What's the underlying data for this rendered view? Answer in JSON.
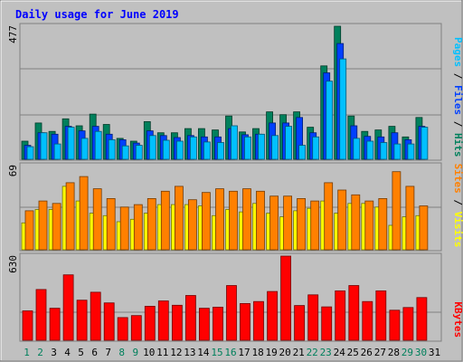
{
  "chart_data": [
    {
      "type": "bar",
      "title": "Daily usage for June 2019",
      "categories": [
        "1",
        "2",
        "3",
        "4",
        "5",
        "6",
        "7",
        "8",
        "9",
        "10",
        "11",
        "12",
        "13",
        "14",
        "15",
        "16",
        "17",
        "18",
        "19",
        "20",
        "21",
        "22",
        "23",
        "24",
        "25",
        "26",
        "27",
        "28",
        "29",
        "30",
        "31"
      ],
      "weekend_days": [
        1,
        2,
        8,
        9,
        15,
        16,
        22,
        23,
        29,
        30
      ],
      "ylim": [
        0,
        477
      ],
      "ytick_label": "477",
      "legend": [
        {
          "label": "Pages",
          "color": "#00c0ff"
        },
        {
          "label": "Files",
          "color": "#0040ff"
        },
        {
          "label": "Hits",
          "color": "#00805c"
        }
      ],
      "series": [
        {
          "name": "Hits",
          "color": "#00805c",
          "values": [
            65,
            130,
            100,
            145,
            120,
            162,
            125,
            75,
            65,
            135,
            95,
            95,
            110,
            110,
            105,
            155,
            98,
            110,
            170,
            160,
            170,
            115,
            335,
            477,
            155,
            100,
            105,
            118,
            80,
            150,
            0
          ]
        },
        {
          "name": "Files",
          "color": "#0040ff",
          "values": [
            50,
            95,
            90,
            118,
            102,
            118,
            90,
            70,
            58,
            102,
            85,
            78,
            85,
            80,
            80,
            110,
            88,
            90,
            130,
            130,
            150,
            95,
            310,
            415,
            120,
            82,
            80,
            95,
            70,
            118,
            0
          ]
        },
        {
          "name": "Pages",
          "color": "#00c0ff",
          "values": [
            45,
            95,
            55,
            115,
            75,
            100,
            70,
            48,
            50,
            85,
            68,
            65,
            80,
            62,
            60,
            120,
            80,
            90,
            85,
            118,
            50,
            80,
            280,
            360,
            75,
            65,
            60,
            55,
            55,
            115,
            0
          ]
        }
      ]
    },
    {
      "type": "bar",
      "categories": [
        "1",
        "2",
        "3",
        "4",
        "5",
        "6",
        "7",
        "8",
        "9",
        "10",
        "11",
        "12",
        "13",
        "14",
        "15",
        "16",
        "17",
        "18",
        "19",
        "20",
        "21",
        "22",
        "23",
        "24",
        "25",
        "26",
        "27",
        "28",
        "29",
        "30",
        "31"
      ],
      "ylim": [
        0,
        69
      ],
      "ytick_label": "69",
      "legend": [
        {
          "label": "Sites",
          "color": "#ff8000"
        },
        {
          "label": "Visits",
          "color": "#ffff00"
        }
      ],
      "series": [
        {
          "name": "Visits",
          "color": "#ffff00",
          "values": [
            22,
            33,
            33,
            52,
            40,
            30,
            28,
            23,
            25,
            30,
            37,
            37,
            37,
            36,
            28,
            33,
            31,
            38,
            30,
            27,
            32,
            34,
            40,
            30,
            38,
            38,
            35,
            20,
            27,
            28,
            0
          ]
        },
        {
          "name": "Sites",
          "color": "#ff8000",
          "values": [
            32,
            40,
            38,
            55,
            60,
            50,
            42,
            35,
            37,
            42,
            48,
            52,
            41,
            47,
            50,
            48,
            50,
            48,
            44,
            44,
            42,
            40,
            55,
            49,
            45,
            40,
            42,
            64,
            52,
            36,
            0
          ]
        }
      ]
    },
    {
      "type": "bar",
      "categories": [
        "1",
        "2",
        "3",
        "4",
        "5",
        "6",
        "7",
        "8",
        "9",
        "10",
        "11",
        "12",
        "13",
        "14",
        "15",
        "16",
        "17",
        "18",
        "19",
        "20",
        "21",
        "22",
        "23",
        "24",
        "25",
        "26",
        "27",
        "28",
        "29",
        "30",
        "31"
      ],
      "ylim": [
        0,
        630
      ],
      "ytick_label": "630",
      "legend": [
        {
          "label": "KBytes",
          "color": "#ff0000"
        }
      ],
      "series": [
        {
          "name": "KBytes",
          "color": "#ff0000",
          "values": [
            220,
            380,
            240,
            490,
            300,
            360,
            280,
            170,
            185,
            255,
            295,
            262,
            335,
            240,
            248,
            410,
            275,
            290,
            365,
            630,
            260,
            340,
            250,
            370,
            410,
            290,
            370,
            225,
            245,
            320,
            0
          ]
        }
      ]
    }
  ]
}
